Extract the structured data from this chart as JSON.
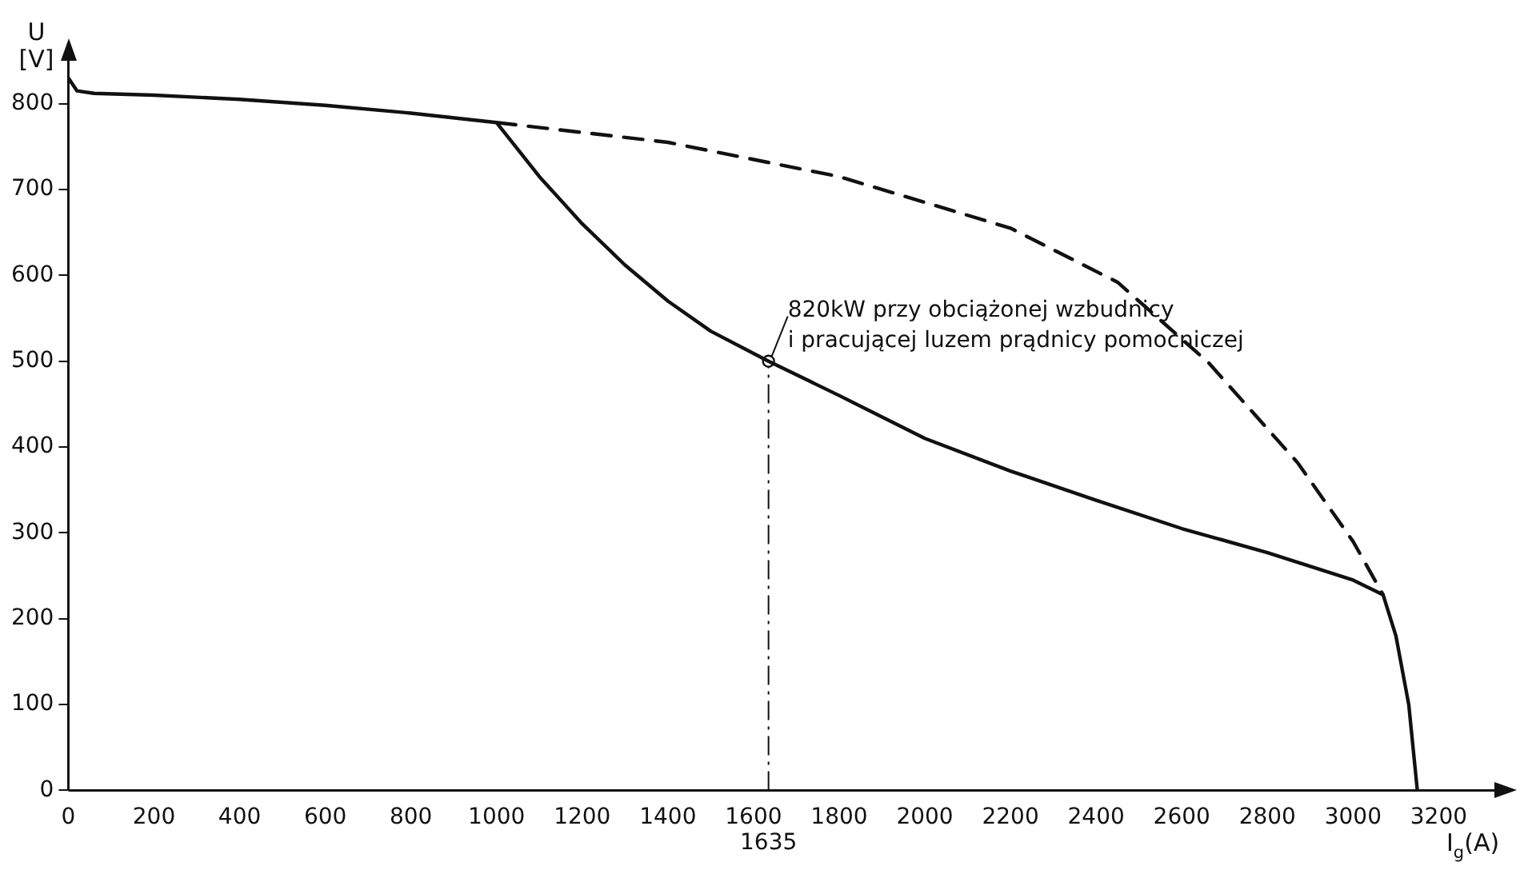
{
  "chart_data": {
    "type": "line",
    "xlabel": "I$_{g}$(A)",
    "ylabel": "U [V]",
    "xlim": [
      0,
      3330
    ],
    "ylim": [
      0,
      850
    ],
    "xticks": [
      0,
      200,
      400,
      600,
      800,
      1000,
      1200,
      1400,
      1600,
      1800,
      2000,
      2200,
      2400,
      2600,
      2800,
      3000,
      3200
    ],
    "yticks": [
      0,
      100,
      200,
      300,
      400,
      500,
      600,
      700,
      800
    ],
    "grid": false,
    "legend": false,
    "marker": "none",
    "series": [
      {
        "color": "#111111",
        "line_style": "solid",
        "x": [
          0,
          20,
          60,
          200,
          400,
          600,
          800,
          1000,
          1100,
          1200,
          1300,
          1400,
          1500,
          1635,
          1800,
          2000,
          2200,
          2400,
          2600,
          2800,
          3000,
          3070,
          3100,
          3130,
          3150
        ],
        "values": [
          830,
          815,
          812,
          810,
          805,
          798,
          789,
          778,
          715,
          660,
          612,
          570,
          535,
          500,
          460,
          410,
          372,
          338,
          305,
          277,
          245,
          228,
          180,
          100,
          0
        ]
      },
      {
        "color": "#111111",
        "line_style": "dashed",
        "x": [
          1000,
          1400,
          1800,
          2200,
          2450,
          2663,
          2870,
          3000,
          3070
        ],
        "values": [
          778,
          755,
          715,
          655,
          592,
          498,
          382,
          290,
          228
        ]
      },
      {
        "type": "scatter",
        "marker": "circle",
        "color": "#111111",
        "x": [
          1635
        ],
        "values": [
          500
        ]
      }
    ],
    "ref_lines": [
      {
        "axis": "x",
        "value": 1635,
        "label": "1635",
        "color": "#111111",
        "line_style": "dashdot"
      }
    ],
    "annotations": [
      {
        "text": "820kW przy obciążonej wzbudnicy\ni pracującej luzem prądnicy pomocniczej",
        "x": 1635,
        "y": 500
      }
    ]
  }
}
